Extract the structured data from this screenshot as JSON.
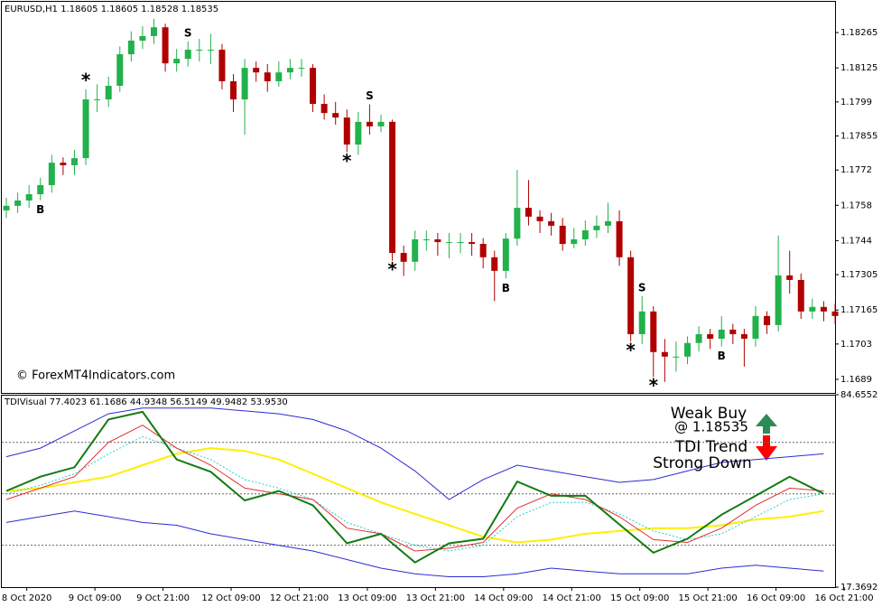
{
  "chart_data": [
    {
      "type": "candlestick",
      "title": "EURUSD,H1  1.18605 1.18605 1.18528 1.18535",
      "watermark": "© ForexMT4Indicators.com",
      "up_color": "#22b14c",
      "down_color": "#b00000",
      "ylim": [
        1.16836,
        1.18387
      ],
      "yticks": [
        1.18265,
        1.18125,
        1.1799,
        1.17855,
        1.1772,
        1.1758,
        1.1744,
        1.17305,
        1.17165,
        1.1703,
        1.1689
      ],
      "xlim": [
        -0.4,
        73.0
      ],
      "xticks": [
        {
          "value": 1.8,
          "label": "8 Oct 2020"
        },
        {
          "value": 7.8,
          "label": "9 Oct 09:00"
        },
        {
          "value": 13.8,
          "label": "9 Oct 21:00"
        },
        {
          "value": 19.8,
          "label": "12 Oct 09:00"
        },
        {
          "value": 25.8,
          "label": "12 Oct 21:00"
        },
        {
          "value": 31.8,
          "label": "13 Oct 09:00"
        },
        {
          "value": 37.8,
          "label": "13 Oct 21:00"
        },
        {
          "value": 43.8,
          "label": "14 Oct 09:00"
        },
        {
          "value": 49.8,
          "label": "14 Oct 21:00"
        },
        {
          "value": 55.8,
          "label": "15 Oct 09:00"
        },
        {
          "value": 61.8,
          "label": "15 Oct 21:00"
        },
        {
          "value": 67.8,
          "label": "16 Oct 09:00"
        },
        {
          "value": 73.8,
          "label": "16 Oct 21:00"
        }
      ],
      "candles": [
        [
          1.1756,
          1.1761,
          1.1753,
          1.17578
        ],
        [
          1.17578,
          1.1763,
          1.1755,
          1.17599
        ],
        [
          1.17599,
          1.1766,
          1.1757,
          1.17624
        ],
        [
          1.17624,
          1.1769,
          1.176,
          1.1766
        ],
        [
          1.1766,
          1.1778,
          1.1763,
          1.17749
        ],
        [
          1.17749,
          1.1777,
          1.177,
          1.17739
        ],
        [
          1.17739,
          1.178,
          1.177,
          1.17767
        ],
        [
          1.17767,
          1.1804,
          1.1774,
          1.18
        ],
        [
          1.18,
          1.1806,
          1.1795,
          1.18
        ],
        [
          1.18,
          1.1809,
          1.1797,
          1.18054
        ],
        [
          1.18054,
          1.1821,
          1.1803,
          1.18179
        ],
        [
          1.18179,
          1.1827,
          1.1815,
          1.18233
        ],
        [
          1.18233,
          1.1829,
          1.182,
          1.18251
        ],
        [
          1.18251,
          1.1832,
          1.1822,
          1.18286
        ],
        [
          1.18286,
          1.183,
          1.1811,
          1.18143
        ],
        [
          1.18143,
          1.182,
          1.1811,
          1.18161
        ],
        [
          1.18161,
          1.1823,
          1.1813,
          1.18197
        ],
        [
          1.18197,
          1.1824,
          1.1815,
          1.18197
        ],
        [
          1.18197,
          1.1826,
          1.1814,
          1.18197
        ],
        [
          1.18197,
          1.1822,
          1.1804,
          1.18072
        ],
        [
          1.18072,
          1.181,
          1.1795,
          1.18
        ],
        [
          1.18,
          1.1816,
          1.1786,
          1.18125
        ],
        [
          1.18125,
          1.1815,
          1.1807,
          1.18107
        ],
        [
          1.18107,
          1.1814,
          1.1803,
          1.18072
        ],
        [
          1.18072,
          1.1815,
          1.1805,
          1.18107
        ],
        [
          1.18107,
          1.1816,
          1.1808,
          1.18125
        ],
        [
          1.18125,
          1.1816,
          1.1809,
          1.18125
        ],
        [
          1.18125,
          1.1814,
          1.1795,
          1.17982
        ],
        [
          1.17982,
          1.1802,
          1.1792,
          1.17946
        ],
        [
          1.17946,
          1.1799,
          1.179,
          1.17928
        ],
        [
          1.17928,
          1.1796,
          1.1779,
          1.17821
        ],
        [
          1.17821,
          1.1795,
          1.1778,
          1.17911
        ],
        [
          1.17911,
          1.1798,
          1.1786,
          1.17893
        ],
        [
          1.17893,
          1.1794,
          1.1787,
          1.17911
        ],
        [
          1.17911,
          1.1792,
          1.1736,
          1.17391
        ],
        [
          1.17391,
          1.1742,
          1.173,
          1.17356
        ],
        [
          1.17356,
          1.1748,
          1.1732,
          1.17445
        ],
        [
          1.17445,
          1.1748,
          1.174,
          1.17445
        ],
        [
          1.17445,
          1.1747,
          1.1738,
          1.17434
        ],
        [
          1.17434,
          1.1747,
          1.1737,
          1.17434
        ],
        [
          1.17434,
          1.1747,
          1.1739,
          1.17434
        ],
        [
          1.17434,
          1.1747,
          1.1738,
          1.17427
        ],
        [
          1.17427,
          1.1745,
          1.1733,
          1.17374
        ],
        [
          1.17374,
          1.174,
          1.172,
          1.1732
        ],
        [
          1.1732,
          1.1747,
          1.1729,
          1.17448
        ],
        [
          1.17448,
          1.1772,
          1.1742,
          1.1757
        ],
        [
          1.1757,
          1.1768,
          1.175,
          1.17535
        ],
        [
          1.17535,
          1.1756,
          1.1747,
          1.17517
        ],
        [
          1.17517,
          1.1755,
          1.1746,
          1.17499
        ],
        [
          1.17499,
          1.1753,
          1.174,
          1.17427
        ],
        [
          1.17427,
          1.1749,
          1.1741,
          1.17445
        ],
        [
          1.17445,
          1.1752,
          1.1742,
          1.17481
        ],
        [
          1.17481,
          1.1754,
          1.1745,
          1.17499
        ],
        [
          1.17499,
          1.1759,
          1.1747,
          1.17517
        ],
        [
          1.17517,
          1.1756,
          1.1734,
          1.17374
        ],
        [
          1.17374,
          1.174,
          1.1704,
          1.17069
        ],
        [
          1.17069,
          1.1722,
          1.1703,
          1.17159
        ],
        [
          1.17159,
          1.1718,
          1.169,
          1.16998
        ],
        [
          1.16998,
          1.1705,
          1.1688,
          1.1698
        ],
        [
          1.1698,
          1.1704,
          1.1692,
          1.1698
        ],
        [
          1.1698,
          1.1706,
          1.1695,
          1.17034
        ],
        [
          1.17034,
          1.171,
          1.17,
          1.17069
        ],
        [
          1.17069,
          1.1709,
          1.1701,
          1.17051
        ],
        [
          1.17051,
          1.1714,
          1.1702,
          1.17087
        ],
        [
          1.17087,
          1.1711,
          1.1703,
          1.17069
        ],
        [
          1.17069,
          1.1709,
          1.1694,
          1.17051
        ],
        [
          1.17051,
          1.1718,
          1.1702,
          1.17141
        ],
        [
          1.17141,
          1.1716,
          1.1707,
          1.17105
        ],
        [
          1.17105,
          1.1746,
          1.1708,
          1.17302
        ],
        [
          1.17302,
          1.174,
          1.1723,
          1.17284
        ],
        [
          1.17284,
          1.1731,
          1.1713,
          1.17159
        ],
        [
          1.17159,
          1.1721,
          1.1713,
          1.17177
        ],
        [
          1.17177,
          1.172,
          1.1712,
          1.17159
        ],
        [
          1.17159,
          1.1719,
          1.1711,
          1.17141
        ]
      ],
      "signals": [
        {
          "label": "B",
          "candle": 3,
          "side": "below",
          "color": "#33dd33"
        },
        {
          "label": "*",
          "candle": 7,
          "side": "above",
          "color": "#ffcc00"
        },
        {
          "label": "S",
          "candle": 16,
          "side": "above",
          "color": "#ee1111"
        },
        {
          "label": "*",
          "candle": 30,
          "side": "below",
          "color": "#ffcc00"
        },
        {
          "label": "S",
          "candle": 32,
          "side": "above",
          "color": "#ee1111"
        },
        {
          "label": "*",
          "candle": 34,
          "side": "below",
          "color": "#ffcc00"
        },
        {
          "label": "B",
          "candle": 44,
          "side": "below",
          "color": "#33dd33"
        },
        {
          "label": "*",
          "candle": 55,
          "side": "below",
          "color": "#ffcc00"
        },
        {
          "label": "S",
          "candle": 56,
          "side": "above",
          "color": "#ee1111"
        },
        {
          "label": "*",
          "candle": 57,
          "side": "below",
          "color": "#ffcc00"
        },
        {
          "label": "B",
          "candle": 63,
          "side": "below",
          "color": "#33dd33"
        }
      ]
    },
    {
      "type": "line",
      "title": "TDIVisual 77.4023 61.1686 44.9348 56.5149 49.9482 53.9530",
      "ylim": [
        17.3692,
        84.6552
      ],
      "yticks": [
        84.6552,
        17.3692
      ],
      "levels": [
        32,
        50,
        68
      ],
      "xlim": [
        -0.4,
        73.0
      ],
      "x": [
        0,
        3,
        6,
        9,
        12,
        15,
        18,
        21,
        24,
        27,
        30,
        33,
        36,
        39,
        42,
        45,
        48,
        51,
        54,
        57,
        60,
        63,
        66,
        69,
        72
      ],
      "series": [
        {
          "color": "#2b2bd4",
          "width": 1,
          "values": [
            63,
            66,
            72,
            78,
            80,
            80,
            80,
            79,
            78,
            76,
            72,
            66,
            58,
            48,
            55,
            60,
            58,
            56,
            54,
            55,
            58,
            61,
            62,
            63,
            64
          ]
        },
        {
          "color": "#2b2bd4",
          "width": 1,
          "values": [
            40,
            42,
            44,
            42,
            40,
            39,
            36,
            34,
            32,
            30,
            27,
            24,
            22,
            21,
            21,
            22,
            24,
            23,
            22,
            22,
            22,
            24,
            25,
            24,
            23
          ]
        },
        {
          "color": "#ffee00",
          "width": 2,
          "values": [
            51,
            52,
            54,
            56,
            60,
            64,
            66,
            65,
            62,
            57,
            52,
            47,
            43,
            39,
            35,
            33,
            34,
            36,
            37,
            38,
            38,
            39,
            41,
            42,
            44
          ]
        },
        {
          "color": "#33cccc",
          "width": 1,
          "dash": true,
          "values": [
            50,
            53,
            57,
            64,
            70,
            66,
            62,
            55,
            52,
            48,
            40,
            36,
            32,
            30,
            32,
            42,
            47,
            47,
            43,
            37,
            34,
            36,
            42,
            48,
            50
          ]
        },
        {
          "color": "#e03030",
          "width": 1,
          "values": [
            48,
            52,
            56,
            68,
            74,
            66,
            60,
            52,
            50,
            48,
            38,
            36,
            30,
            31,
            33,
            45,
            50,
            48,
            42,
            34,
            33,
            38,
            46,
            52,
            51
          ]
        },
        {
          "color": "#137a13",
          "width": 2,
          "values": [
            51.0,
            56.0,
            59.3,
            76.0,
            78.7,
            62.0,
            57.7,
            47.7,
            51.0,
            46.0,
            32.7,
            36.0,
            26.0,
            32.7,
            34.3,
            54.3,
            49.3,
            49.3,
            39.3,
            29.4,
            34.3,
            42.7,
            49.3,
            56.0,
            50.0
          ]
        }
      ],
      "annotations": [
        {
          "text": "Weak Buy",
          "color": "#2e8b57"
        },
        {
          "text": "@ 1.18535",
          "color": "#2e8b57"
        },
        {
          "text": "TDI Trend",
          "color": "#ff0000"
        },
        {
          "text": "Strong Down",
          "color": "#ff0000"
        }
      ]
    }
  ]
}
